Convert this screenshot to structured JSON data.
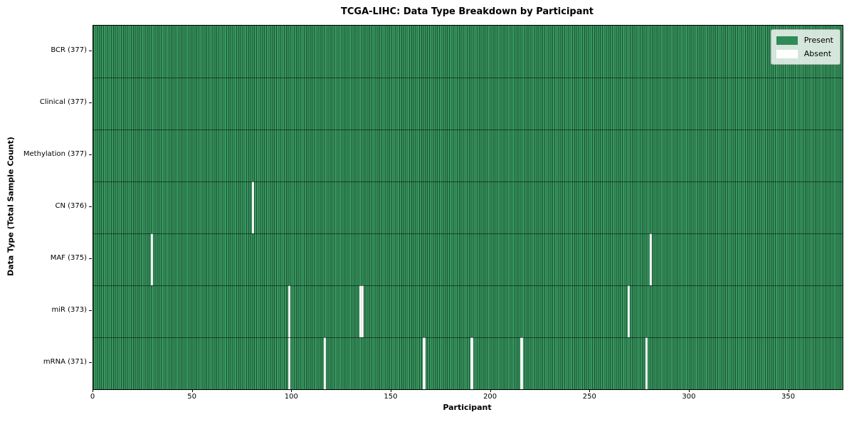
{
  "title": "TCGA-LIHC: Data Type Breakdown by Participant",
  "axes": {
    "xlabel": "Participant",
    "ylabel": "Data Type (Total Sample Count)"
  },
  "legend": {
    "present": "Present",
    "absent": "Absent"
  },
  "colors": {
    "present_fill": "#2e8b57",
    "present_stripe_light": "#389760",
    "present_stripe_dark": "#1c5132",
    "absent_fill": "#ffffff"
  },
  "chart_data": {
    "type": "heatmap",
    "title": "TCGA-LIHC: Data Type Breakdown by Participant",
    "xlabel": "Participant",
    "ylabel": "Data Type (Total Sample Count)",
    "x_range": [
      0,
      377
    ],
    "x_ticks": [
      0,
      50,
      100,
      150,
      200,
      250,
      300,
      350
    ],
    "total_participants": 377,
    "legend_entries": [
      "Present",
      "Absent"
    ],
    "grid": false,
    "legend_position": "upper right",
    "rows": [
      {
        "label": "BCR (377)",
        "data_type": "BCR",
        "present_count": 377,
        "absent_participants": []
      },
      {
        "label": "Clinical (377)",
        "data_type": "Clinical",
        "present_count": 377,
        "absent_participants": []
      },
      {
        "label": "Methylation (377)",
        "data_type": "Methylation",
        "present_count": 377,
        "absent_participants": []
      },
      {
        "label": "CN (376)",
        "data_type": "CN",
        "present_count": 376,
        "absent_participants": [
          80
        ]
      },
      {
        "label": "MAF (375)",
        "data_type": "MAF",
        "present_count": 375,
        "absent_participants": [
          29,
          280
        ]
      },
      {
        "label": "miR (373)",
        "data_type": "miR",
        "present_count": 373,
        "absent_participants": [
          98,
          134,
          135,
          269
        ]
      },
      {
        "label": "mRNA (371)",
        "data_type": "mRNA",
        "present_count": 371,
        "absent_participants": [
          98,
          116,
          166,
          190,
          215,
          278
        ]
      }
    ]
  }
}
